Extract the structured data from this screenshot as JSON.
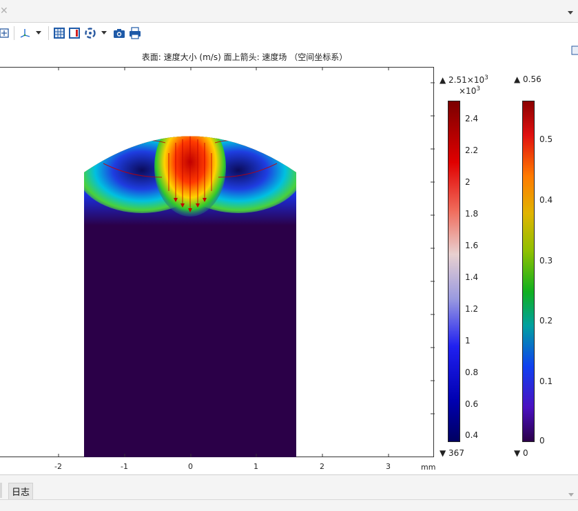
{
  "plot": {
    "title": "表面: 速度大小 (m/s)  面上箭头: 速度场  （空间坐标系）",
    "x_axis": {
      "ticks": [
        "-2",
        "-1",
        "0",
        "1",
        "2",
        "3"
      ],
      "unit": "mm"
    }
  },
  "colorbar_surface": {
    "max_label": "▲ 2.51×10",
    "max_exp": "3",
    "multiplier": "×10",
    "multiplier_exp": "3",
    "ticks": [
      "2.4",
      "2.2",
      "2",
      "1.8",
      "1.6",
      "1.4",
      "1.2",
      "1",
      "0.8",
      "0.6",
      "0.4"
    ],
    "min_label": "▼ 367"
  },
  "colorbar_arrow": {
    "max_label": "▲ 0.56",
    "ticks": [
      "0.5",
      "0.4",
      "0.3",
      "0.2",
      "0.1",
      "0"
    ],
    "min_label": "▼ 0"
  },
  "bottom_panel": {
    "log_tab": "日志"
  },
  "colors": {
    "domain_fill": "#2b0048",
    "frame": "#333333"
  },
  "icons": [
    "close-icon",
    "dropdown-icon",
    "zoom-extents-icon",
    "axis-orientation-icon",
    "grid-icon",
    "legend-icon",
    "scene-light-icon",
    "camera-icon",
    "print-icon"
  ]
}
